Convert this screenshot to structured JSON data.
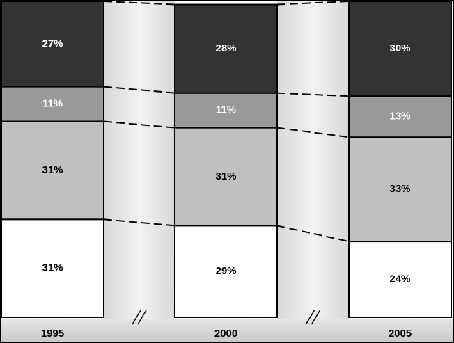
{
  "chart_data": {
    "type": "stacked_bar",
    "categories": [
      "1995",
      "2000",
      "2005"
    ],
    "ylim": [
      0,
      100
    ],
    "series": [
      {
        "color": "#ffffff",
        "values": [
          31,
          29,
          24
        ],
        "value_labels": [
          "31%",
          "29%",
          "24%"
        ]
      },
      {
        "color": "#c0c0c0",
        "values": [
          31,
          31,
          33
        ],
        "value_labels": [
          "31%",
          "31%",
          "33%"
        ]
      },
      {
        "color": "#999999",
        "values": [
          11,
          11,
          13
        ],
        "value_labels": [
          "11%",
          "11%",
          "13%"
        ]
      },
      {
        "color": "#333333",
        "values": [
          27,
          28,
          30
        ],
        "value_labels": [
          "27%",
          "28%",
          "30%"
        ]
      }
    ]
  }
}
